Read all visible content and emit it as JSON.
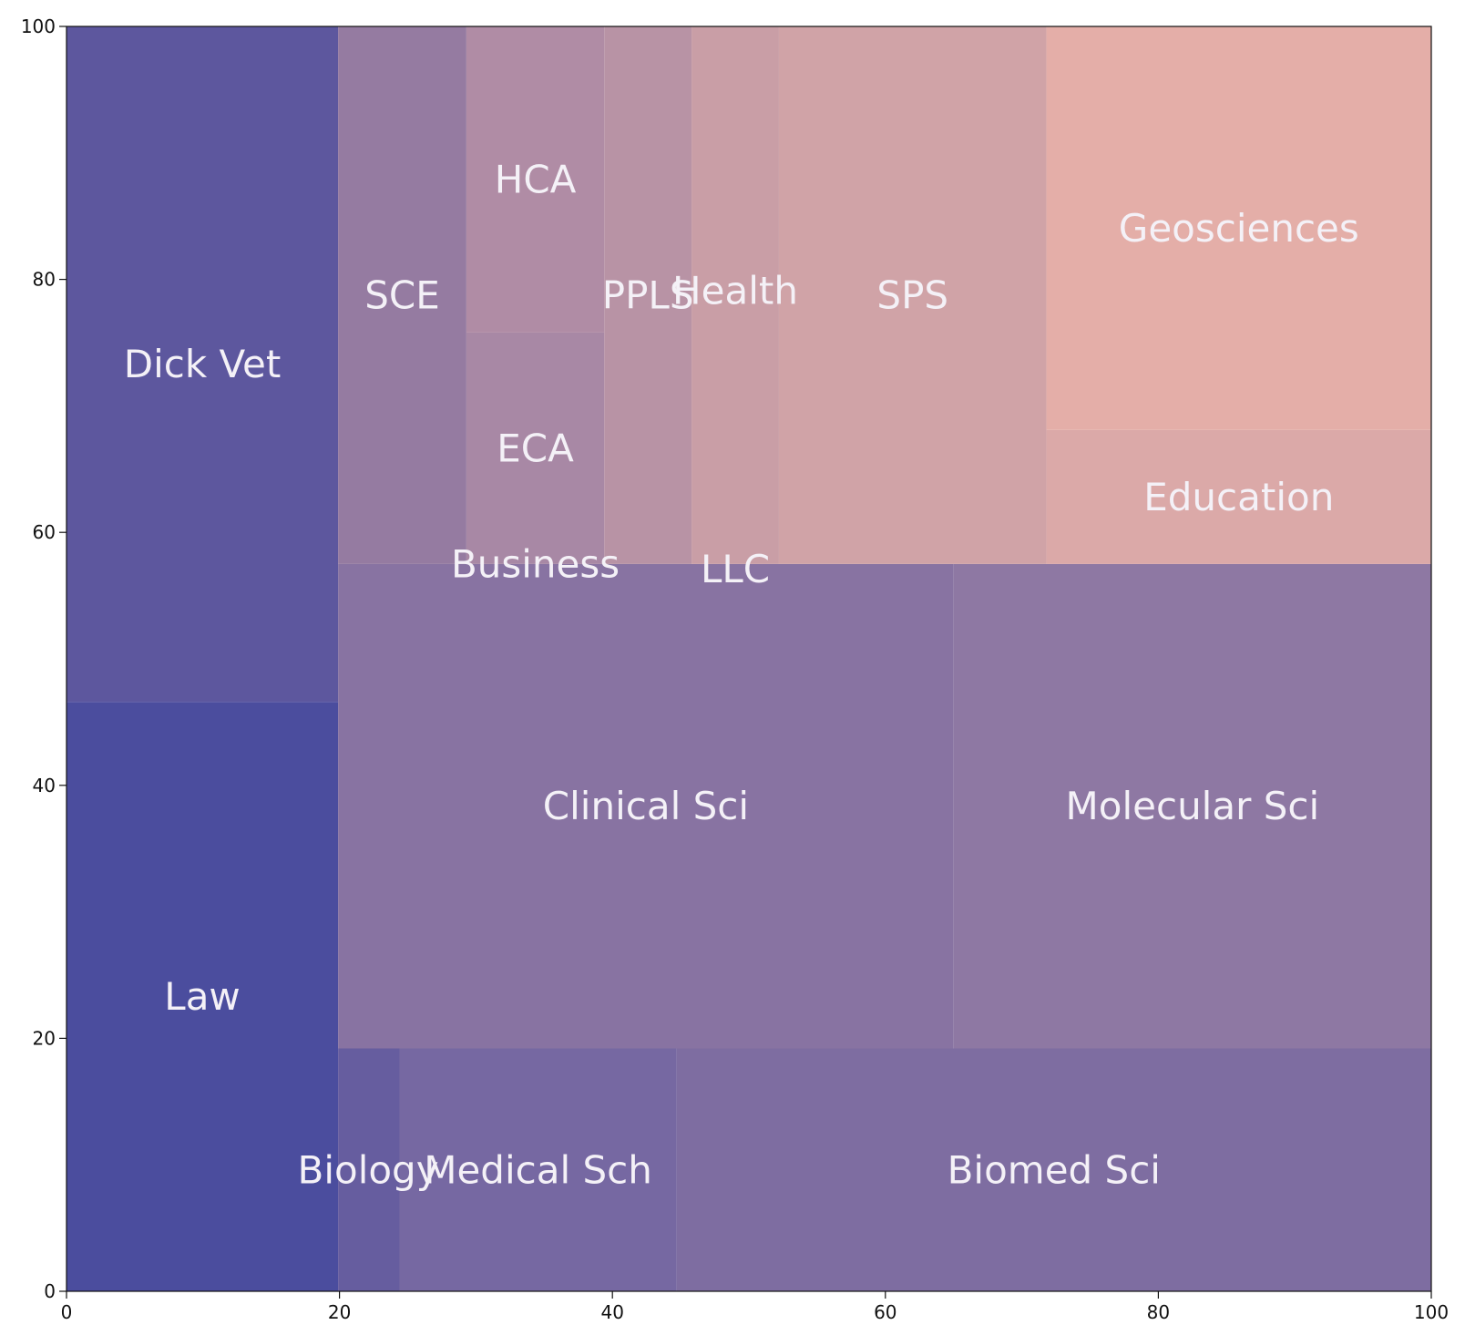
{
  "chart_data": {
    "type": "treemap",
    "xlim": [
      0,
      100
    ],
    "ylim": [
      0,
      100
    ],
    "x_ticks": [
      0,
      20,
      40,
      60,
      80,
      100
    ],
    "y_ticks": [
      0,
      20,
      40,
      60,
      80,
      100
    ],
    "grid": false,
    "rects": [
      {
        "label": "Law",
        "x": 0,
        "y": 0,
        "w": 19.9,
        "h": 46.6,
        "color": "#4b4d9e"
      },
      {
        "label": "Dick Vet",
        "x": 0,
        "y": 46.6,
        "w": 19.9,
        "h": 53.4,
        "color": "#5d579e"
      },
      {
        "label": "Biology",
        "x": 19.9,
        "y": 0,
        "w": 4.5,
        "h": 19.2,
        "color": "#665d9f"
      },
      {
        "label": "Medical Sch",
        "x": 24.4,
        "y": 0,
        "w": 20.3,
        "h": 19.2,
        "color": "#7668a2"
      },
      {
        "label": "Biomed Sci",
        "x": 44.7,
        "y": 0,
        "w": 55.3,
        "h": 19.2,
        "color": "#7e6da1"
      },
      {
        "label": "Clinical Sci",
        "x": 19.9,
        "y": 19.2,
        "w": 45.1,
        "h": 38.3,
        "color": "#8873a2"
      },
      {
        "label": "Molecular Sci",
        "x": 65.0,
        "y": 19.2,
        "w": 35.0,
        "h": 38.3,
        "color": "#8e78a3"
      },
      {
        "label": "SCE",
        "x": 19.9,
        "y": 57.5,
        "w": 9.4,
        "h": 42.5,
        "color": "#957ba1"
      },
      {
        "label": "Business",
        "x": 29.3,
        "y": 57.5,
        "w": 10.1,
        "h": 0,
        "color": "#a083a3"
      },
      {
        "label": "ECA",
        "x": 29.3,
        "y": 57.5,
        "w": 10.1,
        "h": 18.3,
        "color": "#a888a5"
      },
      {
        "label": "HCA",
        "x": 29.3,
        "y": 75.8,
        "w": 10.1,
        "h": 24.2,
        "color": "#b08ca5"
      },
      {
        "label": "PPLS",
        "x": 39.4,
        "y": 57.5,
        "w": 6.4,
        "h": 42.5,
        "color": "#b893a5"
      },
      {
        "label": "LLC",
        "x": 45.8,
        "y": 57.5,
        "w": 6.4,
        "h": 0,
        "color": "#c59ca6"
      },
      {
        "label": "Health",
        "x": 45.8,
        "y": 57.5,
        "w": 6.4,
        "h": 42.5,
        "color": "#c99ea6"
      },
      {
        "label": "SPS",
        "x": 52.2,
        "y": 57.5,
        "w": 19.6,
        "h": 42.5,
        "color": "#d0a3a7"
      },
      {
        "label": "Education",
        "x": 71.8,
        "y": 57.5,
        "w": 28.2,
        "h": 10.6,
        "color": "#dba9a8"
      },
      {
        "label": "Geosciences",
        "x": 71.8,
        "y": 68.1,
        "w": 28.2,
        "h": 31.9,
        "color": "#e4aea8"
      }
    ],
    "labels": [
      {
        "text": "Law",
        "x": 9.95,
        "y": 23.3
      },
      {
        "text": "Dick Vet",
        "x": 9.95,
        "y": 73.3
      },
      {
        "text": "Biology",
        "x": 22.1,
        "y": 9.6
      },
      {
        "text": "Medical Sch",
        "x": 34.55,
        "y": 9.6
      },
      {
        "text": "Biomed Sci",
        "x": 72.35,
        "y": 9.6
      },
      {
        "text": "Clinical Sci",
        "x": 42.45,
        "y": 38.35
      },
      {
        "text": "Molecular Sci",
        "x": 82.5,
        "y": 38.35
      },
      {
        "text": "SCE",
        "x": 24.6,
        "y": 78.75
      },
      {
        "text": "Business",
        "x": 34.35,
        "y": 57.5
      },
      {
        "text": "ECA",
        "x": 34.35,
        "y": 66.65
      },
      {
        "text": "HCA",
        "x": 34.35,
        "y": 87.9
      },
      {
        "text": "PPLS",
        "x": 42.6,
        "y": 78.75
      },
      {
        "text": "LLC",
        "x": 49.0,
        "y": 57.1
      },
      {
        "text": "Health",
        "x": 49.0,
        "y": 79.1
      },
      {
        "text": "SPS",
        "x": 62.0,
        "y": 78.75
      },
      {
        "text": "Education",
        "x": 85.9,
        "y": 62.8
      },
      {
        "text": "Geosciences",
        "x": 85.9,
        "y": 84.05
      }
    ]
  }
}
